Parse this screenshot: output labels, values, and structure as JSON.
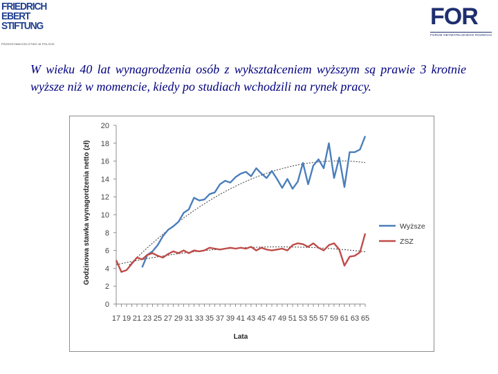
{
  "logos": {
    "left": {
      "lines": [
        "FRIEDRICH",
        "EBERT",
        "STIFTUNG"
      ],
      "tagline": "PRZEDSTAWICIELSTWO W POLSCE"
    },
    "right": {
      "wordmark": "FOR",
      "tagline": "FORUM OBYWATELSKIEGO ROZWOJU"
    }
  },
  "headline": "W wieku 40 lat wynagrodzenia osób z wykształceniem wyższym są prawie 3 krotnie wyższe niż w momencie, kiedy po studiach wchodzili na rynek pracy.",
  "colors": {
    "series_wyzsze": "#4a7ebb",
    "series_zsz": "#be4b48",
    "trend": "#333333",
    "headline": "#000080"
  },
  "chart_data": {
    "type": "line",
    "xlabel": "Lata",
    "ylabel": "Godzinowa stawka wynagordzenia netto (zł)",
    "ylim": [
      0,
      20
    ],
    "yticks": [
      0,
      2,
      4,
      6,
      8,
      10,
      12,
      14,
      16,
      18,
      20
    ],
    "x": [
      17,
      18,
      19,
      20,
      21,
      22,
      23,
      24,
      25,
      26,
      27,
      28,
      29,
      30,
      31,
      32,
      33,
      34,
      35,
      36,
      37,
      38,
      39,
      40,
      41,
      42,
      43,
      44,
      45,
      46,
      47,
      48,
      49,
      50,
      51,
      52,
      53,
      54,
      55,
      56,
      57,
      58,
      59,
      60,
      61,
      62,
      63,
      64,
      65
    ],
    "xtick_labels": [
      "17",
      "19",
      "21",
      "23",
      "25",
      "27",
      "29",
      "31",
      "33",
      "35",
      "37",
      "39",
      "41",
      "43",
      "45",
      "47",
      "49",
      "51",
      "53",
      "55",
      "57",
      "59",
      "61",
      "63",
      "65"
    ],
    "legend_position": "right",
    "grid": false,
    "series": [
      {
        "name": "Wyższe",
        "color": "#4a7ebb",
        "x": [
          22,
          23,
          24,
          25,
          26,
          27,
          28,
          29,
          30,
          31,
          32,
          33,
          34,
          35,
          36,
          37,
          38,
          39,
          40,
          41,
          42,
          43,
          44,
          45,
          46,
          47,
          48,
          49,
          50,
          51,
          52,
          53,
          54,
          55,
          56,
          57,
          58,
          59,
          60,
          61,
          62,
          63,
          64,
          65
        ],
        "values": [
          4.1,
          5.5,
          5.9,
          6.6,
          7.6,
          8.3,
          8.7,
          9.2,
          10.2,
          10.6,
          11.9,
          11.6,
          11.7,
          12.3,
          12.5,
          13.4,
          13.8,
          13.6,
          14.2,
          14.6,
          14.8,
          14.3,
          15.2,
          14.6,
          14.1,
          14.9,
          14.0,
          13.0,
          14.0,
          12.9,
          13.7,
          15.8,
          13.4,
          15.5,
          16.2,
          15.2,
          18.0,
          14.1,
          16.4,
          13.1,
          17.0,
          17.0,
          17.3,
          18.8
        ]
      },
      {
        "name": "ZSZ",
        "color": "#be4b48",
        "x": [
          17,
          18,
          19,
          20,
          21,
          22,
          23,
          24,
          25,
          26,
          27,
          28,
          29,
          30,
          31,
          32,
          33,
          34,
          35,
          36,
          37,
          38,
          39,
          40,
          41,
          42,
          43,
          44,
          45,
          46,
          47,
          48,
          49,
          50,
          51,
          52,
          53,
          54,
          55,
          56,
          57,
          58,
          59,
          60,
          61,
          62,
          63,
          64,
          65
        ],
        "values": [
          4.9,
          3.6,
          3.8,
          4.5,
          5.2,
          5.0,
          5.5,
          5.7,
          5.4,
          5.2,
          5.6,
          5.9,
          5.7,
          6.0,
          5.7,
          6.0,
          5.9,
          6.0,
          6.3,
          6.2,
          6.1,
          6.2,
          6.3,
          6.2,
          6.3,
          6.2,
          6.4,
          6.0,
          6.3,
          6.1,
          6.0,
          6.1,
          6.2,
          6.0,
          6.6,
          6.8,
          6.7,
          6.4,
          6.8,
          6.3,
          6.0,
          6.6,
          6.8,
          6.1,
          4.3,
          5.3,
          5.4,
          5.8,
          7.9
        ]
      }
    ]
  }
}
